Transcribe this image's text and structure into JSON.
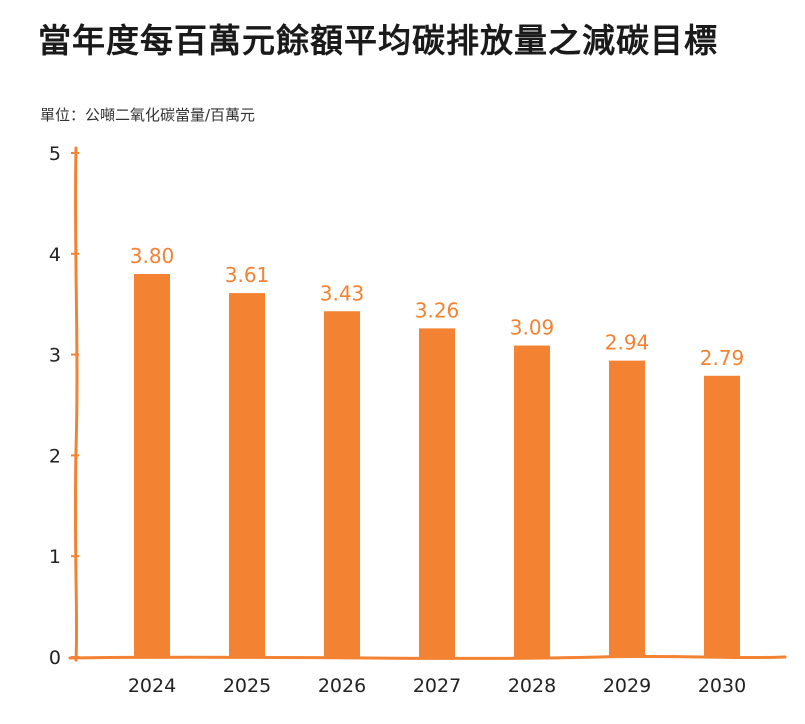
{
  "title": "當年度每百萬元餘額平均碳排放量之減碳目標",
  "unit_label": "單位：公噸二氧化碳當量/百萬元",
  "colors": {
    "bar": "#F38233",
    "axis": "#F38233",
    "text": "#222222"
  },
  "chart_data": {
    "type": "bar",
    "categories": [
      "2024",
      "2025",
      "2026",
      "2027",
      "2028",
      "2029",
      "2030"
    ],
    "values": [
      3.8,
      3.61,
      3.43,
      3.26,
      3.09,
      2.94,
      2.79
    ],
    "value_labels": [
      "3.80",
      "3.61",
      "3.43",
      "3.26",
      "3.09",
      "2.94",
      "2.79"
    ],
    "y_ticks": [
      "0",
      "1",
      "2",
      "3",
      "4",
      "5"
    ],
    "ylim": [
      0,
      5
    ],
    "grid": false,
    "legend": "none"
  }
}
